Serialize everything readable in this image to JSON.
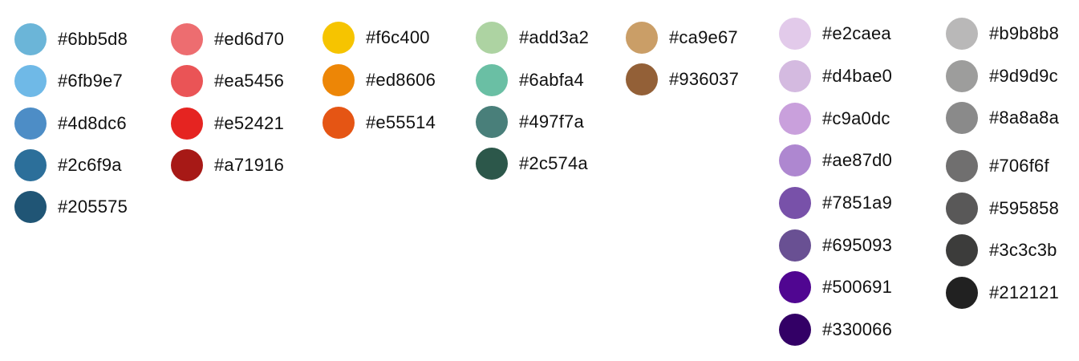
{
  "palette": {
    "groups": [
      {
        "colors": [
          "#6bb5d8",
          "#6fb9e7",
          "#4d8dc6",
          "#2c6f9a",
          "#205575"
        ]
      },
      {
        "colors": [
          "#ed6d70",
          "#ea5456",
          "#e52421",
          "#a71916"
        ]
      },
      {
        "colors": [
          "#f6c400",
          "#ed8606",
          "#e55514"
        ]
      },
      {
        "colors": [
          "#add3a2",
          "#6abfa4",
          "#497f7a",
          "#2c574a"
        ]
      },
      {
        "colors": [
          "#ca9e67",
          "#936037"
        ]
      },
      {
        "colors": [
          "#e2caea",
          "#d4bae0",
          "#c9a0dc",
          "#ae87d0",
          "#7851a9",
          "#695093",
          "#500691",
          "#330066"
        ]
      },
      {
        "colors": [
          "#b9b8b8",
          "#9d9d9c",
          "#8a8a8a",
          "#706f6f",
          "#595858",
          "#3c3c3b",
          "#212121"
        ]
      }
    ]
  }
}
